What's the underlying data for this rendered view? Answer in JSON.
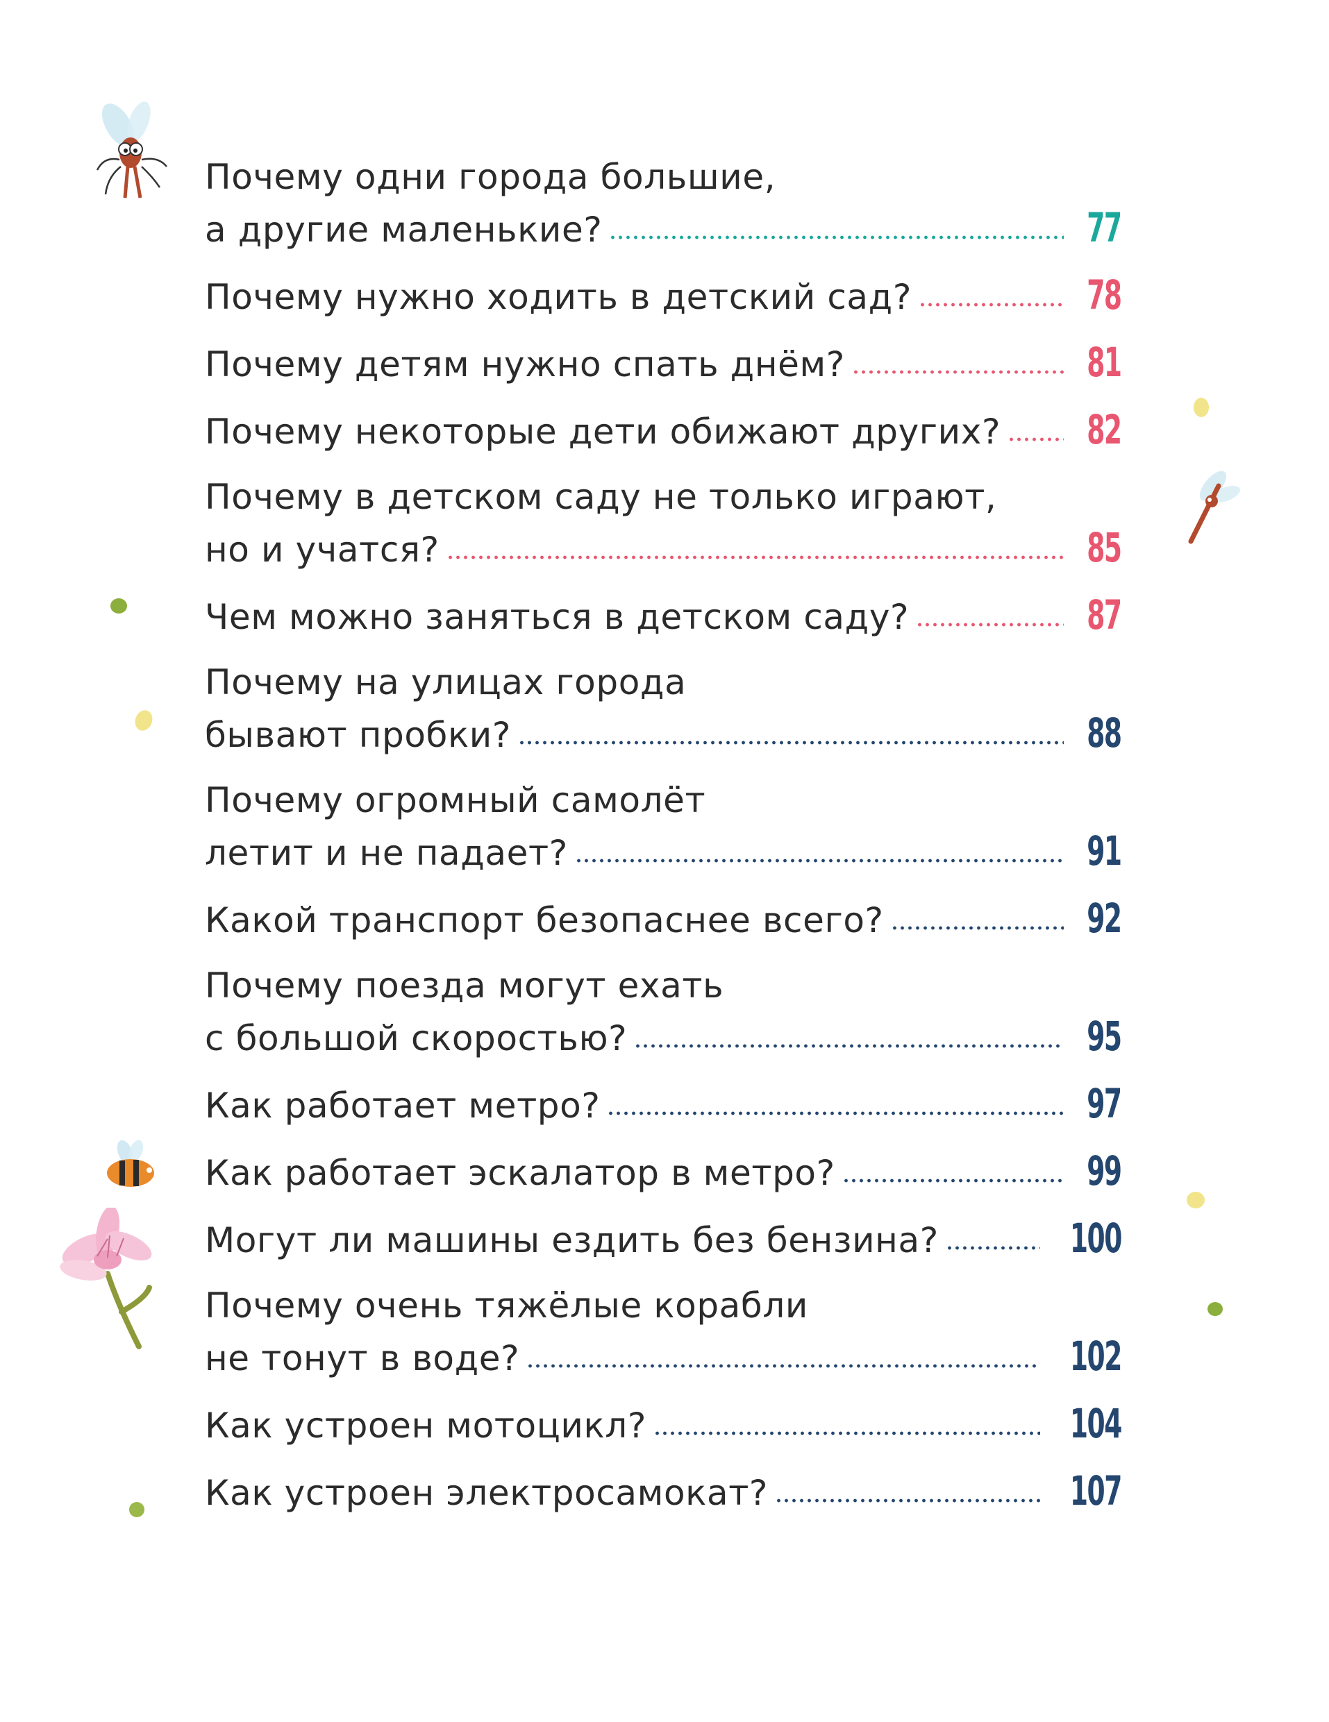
{
  "colors": {
    "text": "#2b2b2b",
    "teal": "#1aa89c",
    "pink": "#e8566f",
    "navy": "#24466f"
  },
  "entries": [
    {
      "lines": [
        "Почему одни города большие,",
        "а другие маленькие?"
      ],
      "page": "77",
      "color": "teal"
    },
    {
      "lines": [
        "Почему нужно ходить в детский сад?"
      ],
      "page": "78",
      "color": "pink"
    },
    {
      "lines": [
        "Почему детям нужно спать днём?"
      ],
      "page": "81",
      "color": "pink"
    },
    {
      "lines": [
        "Почему некоторые дети обижают других?"
      ],
      "page": "82",
      "color": "pink"
    },
    {
      "lines": [
        "Почему в детском саду не только играют,",
        "но и учатся?"
      ],
      "page": "85",
      "color": "pink"
    },
    {
      "lines": [
        "Чем можно заняться в детском саду?"
      ],
      "page": "87",
      "color": "pink"
    },
    {
      "lines": [
        "Почему на улицах города",
        "бывают пробки?"
      ],
      "page": "88",
      "color": "navy"
    },
    {
      "lines": [
        "Почему огромный самолёт",
        "летит и не падает?"
      ],
      "page": "91",
      "color": "navy"
    },
    {
      "lines": [
        "Какой транспорт безопаснее всего?"
      ],
      "page": "92",
      "color": "navy"
    },
    {
      "lines": [
        "Почему поезда могут ехать",
        "с большой скоростью?"
      ],
      "page": "95",
      "color": "navy"
    },
    {
      "lines": [
        "Как работает метро?"
      ],
      "page": "97",
      "color": "navy"
    },
    {
      "lines": [
        "Как работает эскалатор в метро?"
      ],
      "page": "99",
      "color": "navy"
    },
    {
      "lines": [
        "Могут ли машины ездить без бензина?"
      ],
      "page": "100",
      "color": "navy"
    },
    {
      "lines": [
        "Почему очень тяжёлые корабли",
        "не тонут в воде?"
      ],
      "page": "102",
      "color": "navy"
    },
    {
      "lines": [
        "Как устроен мотоцикл?"
      ],
      "page": "104",
      "color": "navy"
    },
    {
      "lines": [
        "Как устроен электросамокат?"
      ],
      "page": "107",
      "color": "navy"
    }
  ],
  "decorations": [
    "mosquito-icon",
    "flying-insect-icon",
    "bee-icon",
    "pink-flower-icon",
    "green-dot-icon",
    "yellow-dot-icon"
  ]
}
